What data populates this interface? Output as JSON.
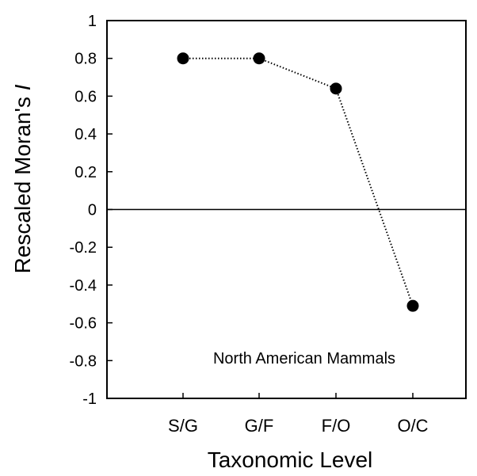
{
  "chart_data": {
    "type": "line",
    "title": "",
    "xlabel": "Taxonomic Level",
    "ylabel": "Rescaled Moran's ",
    "ylabel_italic": "I",
    "annotation": "North American Mammals",
    "categories": [
      "S/G",
      "G/F",
      "F/O",
      "O/C"
    ],
    "series": [
      {
        "values": [
          0.8,
          0.8,
          0.64,
          -0.51
        ],
        "line_style": "dotted",
        "marker": "filled-circle"
      }
    ],
    "ylim": [
      -1,
      1
    ],
    "yticks": [
      "-1",
      "-0.8",
      "-0.6",
      "-0.4",
      "-0.2",
      "0",
      "0.2",
      "0.4",
      "0.6",
      "0.8",
      "1"
    ],
    "yticks_values": [
      -1,
      -0.8,
      -0.6,
      -0.4,
      -0.2,
      0,
      0.2,
      0.4,
      0.6,
      0.8,
      1
    ],
    "zero_line": true,
    "grid": false,
    "colors": {
      "marks": "#000000",
      "background": "#ffffff"
    }
  }
}
